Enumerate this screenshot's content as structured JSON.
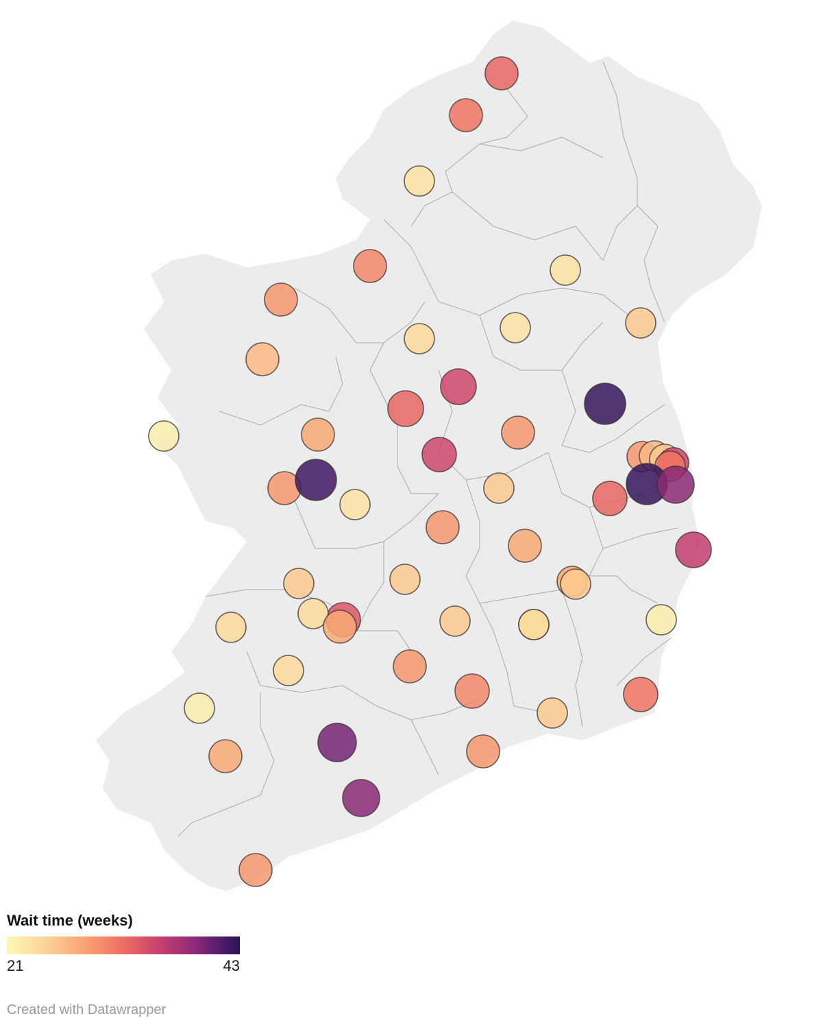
{
  "legend": {
    "title": "Wait time (weeks)",
    "min_label": "21",
    "max_label": "43",
    "min": 21,
    "max": 43,
    "colors": [
      "#fcf7b8",
      "#fcd89a",
      "#f9a474",
      "#ee6e62",
      "#c9406f",
      "#912b77",
      "#4e1a6e",
      "#2a1450"
    ]
  },
  "footer": {
    "credit": "Created with Datawrapper"
  },
  "map": {
    "land_color": "#ececec",
    "border_color": "#a8a8a8",
    "marker_opacity": 0.85
  },
  "markers": [
    {
      "id": "donegal-north",
      "wait": 31
    },
    {
      "id": "donegal-letterkenny",
      "wait": 30
    },
    {
      "id": "donegal-south",
      "wait": 23
    },
    {
      "id": "sligo",
      "wait": 29
    },
    {
      "id": "monaghan",
      "wait": 23
    },
    {
      "id": "mayo-north",
      "wait": 28
    },
    {
      "id": "roscommon-north",
      "wait": 24
    },
    {
      "id": "cavan",
      "wait": 23
    },
    {
      "id": "louth",
      "wait": 25
    },
    {
      "id": "mayo-castlebar",
      "wait": 26
    },
    {
      "id": "longford",
      "wait": 33
    },
    {
      "id": "meath-navan",
      "wait": 42
    },
    {
      "id": "roscommon",
      "wait": 31
    },
    {
      "id": "galway-west",
      "wait": 22
    },
    {
      "id": "galway-tuam",
      "wait": 27
    },
    {
      "id": "westmeath",
      "wait": 28
    },
    {
      "id": "athlone",
      "wait": 33
    },
    {
      "id": "dublin-north-1",
      "wait": 28
    },
    {
      "id": "dublin-north-2",
      "wait": 26
    },
    {
      "id": "dublin-north-3",
      "wait": 25
    },
    {
      "id": "dublin-north-4",
      "wait": 33
    },
    {
      "id": "dublin-north-5",
      "wait": 30
    },
    {
      "id": "dublin-south-1",
      "wait": 42
    },
    {
      "id": "dublin-south-2",
      "wait": 37
    },
    {
      "id": "galway-city",
      "wait": 28
    },
    {
      "id": "galway-east",
      "wait": 41
    },
    {
      "id": "ballinasloe",
      "wait": 23
    },
    {
      "id": "offaly-tullamore",
      "wait": 25
    },
    {
      "id": "kildare",
      "wait": 31
    },
    {
      "id": "wicklow",
      "wait": 34
    },
    {
      "id": "laois-birr",
      "wait": 28
    },
    {
      "id": "laois-portlaoise",
      "wait": 27
    },
    {
      "id": "kildare-athy-1",
      "wait": 27
    },
    {
      "id": "kildare-athy-2",
      "wait": 25
    },
    {
      "id": "clare-ennis",
      "wait": 25
    },
    {
      "id": "tipperary-nenagh",
      "wait": 25
    },
    {
      "id": "limerick-1",
      "wait": 32
    },
    {
      "id": "limerick-2",
      "wait": 24
    },
    {
      "id": "limerick-3",
      "wait": 27
    },
    {
      "id": "kilkenny-1",
      "wait": 25
    },
    {
      "id": "kilkenny-2",
      "wait": 24
    },
    {
      "id": "carlow",
      "wait": 24
    },
    {
      "id": "wicklow-arklow",
      "wait": 22
    },
    {
      "id": "kerry-north",
      "wait": 24
    },
    {
      "id": "kerry-listowel",
      "wait": 24
    },
    {
      "id": "tipperary-clonmel",
      "wait": 28
    },
    {
      "id": "tipperary-cashel",
      "wait": 29
    },
    {
      "id": "wexford",
      "wait": 30
    },
    {
      "id": "new-ross",
      "wait": 25
    },
    {
      "id": "kerry-tralee",
      "wait": 22
    },
    {
      "id": "kerry-killarney",
      "wait": 27
    },
    {
      "id": "cork-mallow",
      "wait": 38
    },
    {
      "id": "waterford",
      "wait": 28
    },
    {
      "id": "cork-city",
      "wait": 37
    },
    {
      "id": "cork-west",
      "wait": 28
    }
  ]
}
